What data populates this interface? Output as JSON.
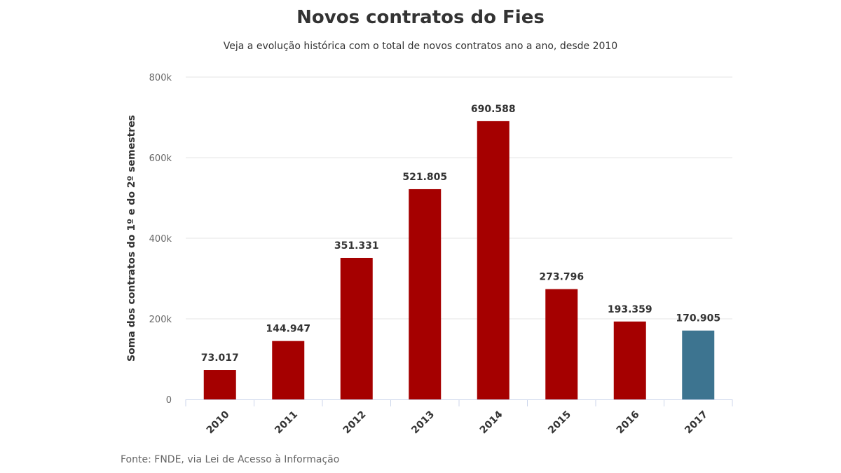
{
  "chart_data": {
    "type": "bar",
    "title": "Novos contratos do Fies",
    "subtitle": "Veja a evolução histórica com o total de novos contratos ano a ano, desde 2010",
    "xlabel": "",
    "ylabel": "Soma dos contratos do 1º e do 2º semestres",
    "ylim": [
      0,
      800000
    ],
    "yticks": [
      0,
      200000,
      400000,
      600000,
      800000
    ],
    "ytick_labels": [
      "0",
      "200k",
      "400k",
      "600k",
      "800k"
    ],
    "categories": [
      "2010",
      "2011",
      "2012",
      "2013",
      "2014",
      "2015",
      "2016",
      "2017"
    ],
    "values": [
      73017,
      144947,
      351331,
      521805,
      690588,
      273796,
      193359,
      170905
    ],
    "data_labels": [
      "73.017",
      "144.947",
      "351.331",
      "521.805",
      "690.588",
      "273.796",
      "193.359",
      "170.905"
    ],
    "colors": [
      "#a50000",
      "#a50000",
      "#a50000",
      "#a50000",
      "#a50000",
      "#a50000",
      "#a50000",
      "#3d7490"
    ],
    "grid": true,
    "legend": "none",
    "source": "Fonte: FNDE, via Lei de Acesso à Informação"
  }
}
